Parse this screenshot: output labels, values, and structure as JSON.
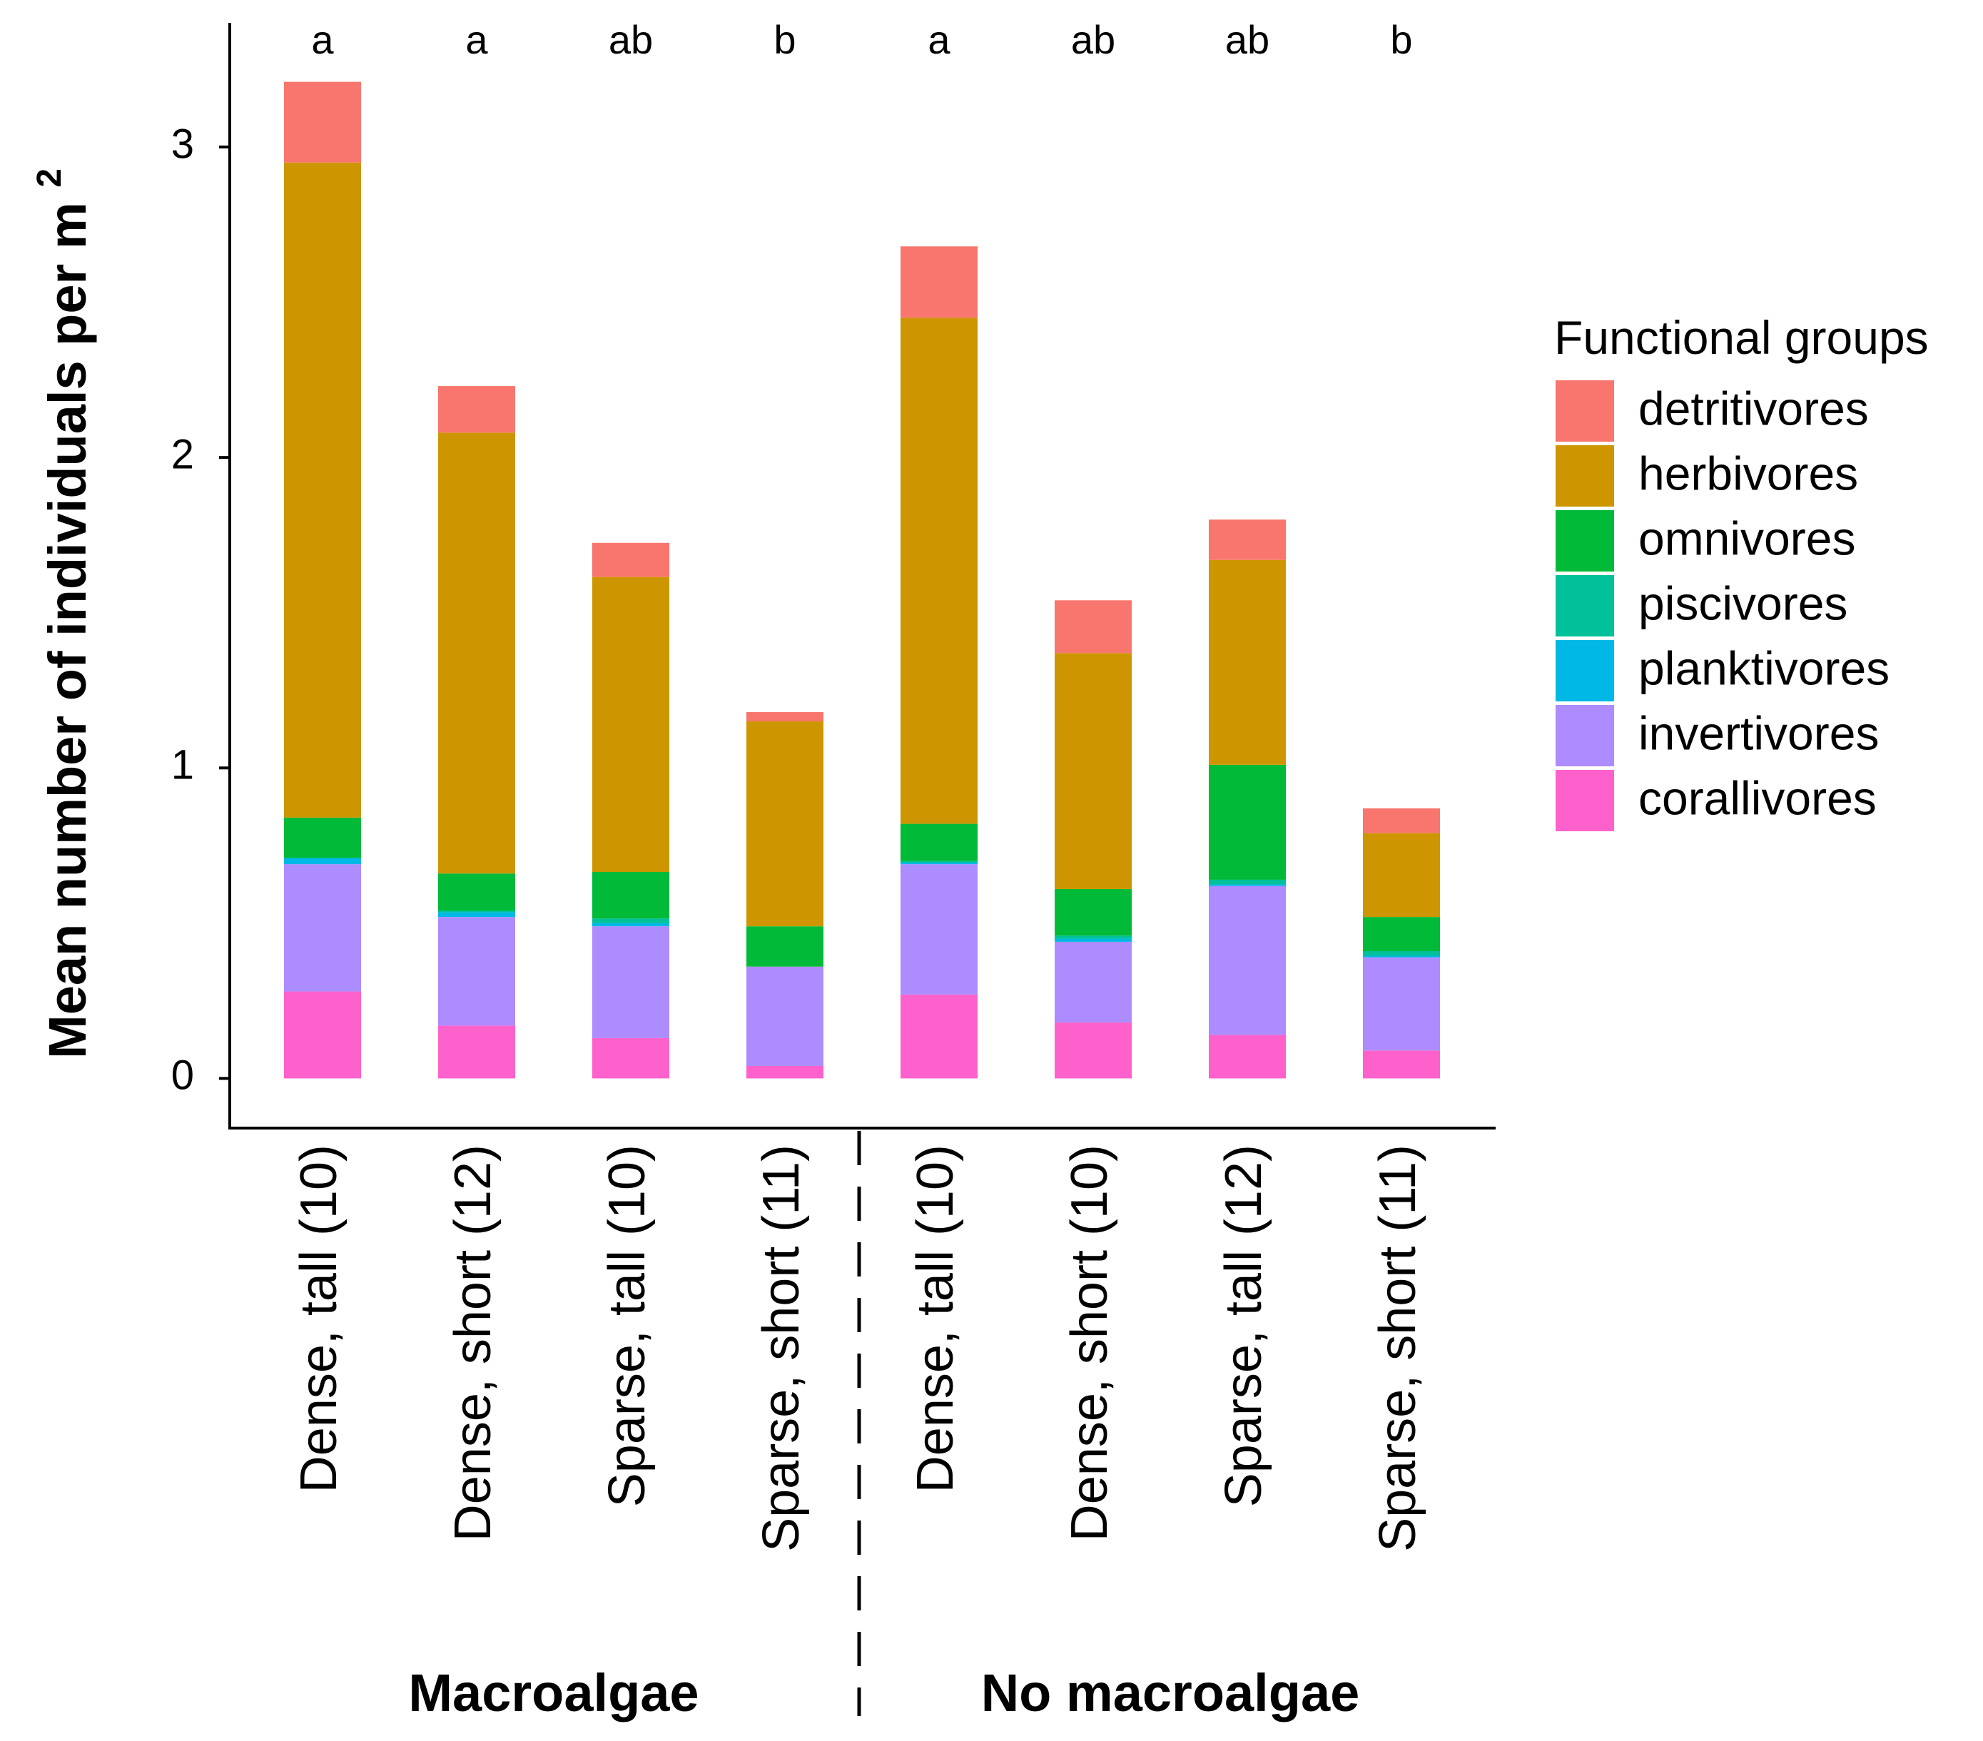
{
  "chart_data": {
    "type": "bar",
    "stacked": true,
    "ylabel": "Mean number of individuals per m",
    "ylabel_superscript": "2",
    "ylim": [
      -0.16,
      3.4
    ],
    "yticks": [
      0,
      1,
      2,
      3
    ],
    "ytick_labels": [
      "0",
      "1",
      "2",
      "3"
    ],
    "categories": [
      "Dense, tall (10)",
      "Dense, short (12)",
      "Sparse, tall (10)",
      "Sparse, short (11)",
      "Dense, tall (10)",
      "Dense, short (10)",
      "Sparse, tall (12)",
      "Sparse, short (11)"
    ],
    "significance_letters": [
      "a",
      "a",
      "ab",
      "b",
      "a",
      "ab",
      "ab",
      "b"
    ],
    "groups": [
      {
        "label": "Macroalgae",
        "categories": [
          0,
          1,
          2,
          3
        ]
      },
      {
        "label": "No macroalgae",
        "categories": [
          4,
          5,
          6,
          7
        ]
      }
    ],
    "legend_title": "Functional groups",
    "legend_position": "right",
    "series": [
      {
        "name": "corallivores",
        "color": "#FF61CC",
        "values": [
          0.28,
          0.17,
          0.13,
          0.04,
          0.27,
          0.18,
          0.14,
          0.09
        ]
      },
      {
        "name": "invertivores",
        "color": "#AD8CFF",
        "values": [
          0.41,
          0.35,
          0.36,
          0.32,
          0.42,
          0.26,
          0.48,
          0.3
        ]
      },
      {
        "name": "planktivores",
        "color": "#00B8E5",
        "values": [
          0.02,
          0.015,
          0.01,
          0.0,
          0.005,
          0.01,
          0.005,
          0.005
        ]
      },
      {
        "name": "piscivores",
        "color": "#00C19A",
        "values": [
          0.0,
          0.005,
          0.015,
          0.0,
          0.005,
          0.01,
          0.015,
          0.015
        ]
      },
      {
        "name": "omnivores",
        "color": "#00BA38",
        "values": [
          0.13,
          0.12,
          0.15,
          0.13,
          0.12,
          0.15,
          0.37,
          0.11
        ]
      },
      {
        "name": "herbivores",
        "color": "#CD9600",
        "values": [
          2.11,
          1.42,
          0.95,
          0.66,
          1.63,
          0.76,
          0.66,
          0.27
        ]
      },
      {
        "name": "detritivores",
        "color": "#F8766D",
        "values": [
          0.26,
          0.15,
          0.11,
          0.03,
          0.23,
          0.17,
          0.13,
          0.08
        ]
      }
    ],
    "legend_order": [
      "detritivores",
      "herbivores",
      "omnivores",
      "piscivores",
      "planktivores",
      "invertivores",
      "corallivores"
    ]
  }
}
